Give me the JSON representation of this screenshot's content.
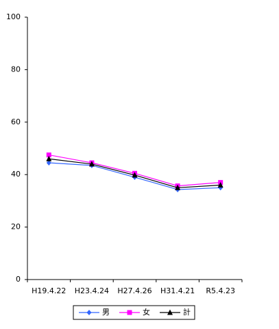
{
  "chart_data": {
    "type": "line",
    "categories": [
      "H19.4.22",
      "H23.4.24",
      "H27.4.26",
      "H31.4.21",
      "R5.4.23"
    ],
    "series": [
      {
        "name": "男",
        "color": "#3366ff",
        "marker": "diamond",
        "values": [
          44.5,
          43.5,
          39,
          34.3,
          35
        ]
      },
      {
        "name": "女",
        "color": "#ff00ff",
        "marker": "square",
        "values": [
          47.5,
          44.5,
          40.5,
          35.7,
          37
        ]
      },
      {
        "name": "計",
        "color": "#000000",
        "marker": "triangle",
        "values": [
          46,
          44,
          39.8,
          35,
          36
        ]
      }
    ],
    "ylim": [
      0,
      100
    ],
    "yticks": [
      0,
      20,
      40,
      60,
      80,
      100
    ],
    "grid": false,
    "legend": "bottom"
  }
}
